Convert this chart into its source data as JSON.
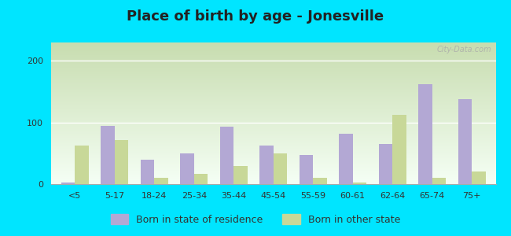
{
  "title": "Place of birth by age - Jonesville",
  "categories": [
    "<5",
    "5-17",
    "18-24",
    "25-34",
    "35-44",
    "45-54",
    "55-59",
    "60-61",
    "62-64",
    "65-74",
    "75+"
  ],
  "born_in_state": [
    3,
    95,
    40,
    50,
    93,
    62,
    47,
    82,
    65,
    162,
    138
  ],
  "born_other_state": [
    62,
    72,
    10,
    17,
    30,
    50,
    10,
    3,
    112,
    10,
    20
  ],
  "bar_color_state": "#b3a8d4",
  "bar_color_other": "#c8d898",
  "outer_bg": "#00e5ff",
  "ylim": [
    0,
    230
  ],
  "yticks": [
    0,
    100,
    200
  ],
  "legend_labels": [
    "Born in state of residence",
    "Born in other state"
  ],
  "title_fontsize": 13,
  "title_color": "#222222",
  "tick_fontsize": 8,
  "legend_fontsize": 9,
  "bg_color_top": "#f5fff5",
  "bg_color_bottom": "#c8ddb0"
}
